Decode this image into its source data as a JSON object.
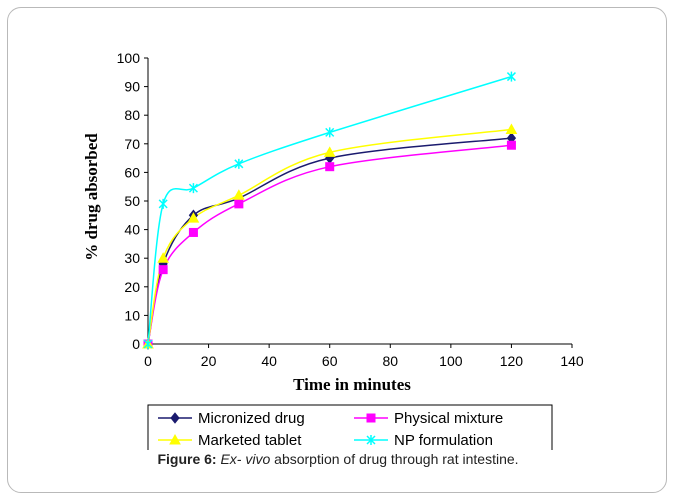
{
  "chart_data": {
    "type": "line",
    "xlabel": "Time in minutes",
    "ylabel": "% drug absorbed",
    "xlim": [
      0,
      140
    ],
    "ylim": [
      0,
      100
    ],
    "xticks": [
      0,
      20,
      40,
      60,
      80,
      100,
      120,
      140
    ],
    "yticks": [
      0,
      10,
      20,
      30,
      40,
      50,
      60,
      70,
      80,
      90,
      100
    ],
    "grid": false,
    "legend_position": "bottom",
    "x": [
      0,
      5,
      15,
      30,
      60,
      120
    ],
    "series": [
      {
        "name": "Micronized drug",
        "color": "#1a1a6e",
        "marker": "diamond",
        "values": [
          0,
          28,
          45,
          51,
          65,
          72
        ]
      },
      {
        "name": "Physical mixture",
        "color": "#ff00ff",
        "marker": "square",
        "values": [
          0,
          26,
          39,
          49,
          62,
          69.5
        ]
      },
      {
        "name": "Marketed tablet",
        "color": "#ffff00",
        "marker": "triangle",
        "values": [
          0,
          30,
          44,
          52,
          67,
          75
        ]
      },
      {
        "name": "NP formulation",
        "color": "#00ffff",
        "marker": "star",
        "values": [
          0,
          49,
          54.5,
          63,
          74,
          93.5
        ]
      }
    ]
  },
  "caption": {
    "label": "Figure 6:",
    "italic": "Ex- vivo",
    "text": " absorption of drug through rat intestine."
  }
}
